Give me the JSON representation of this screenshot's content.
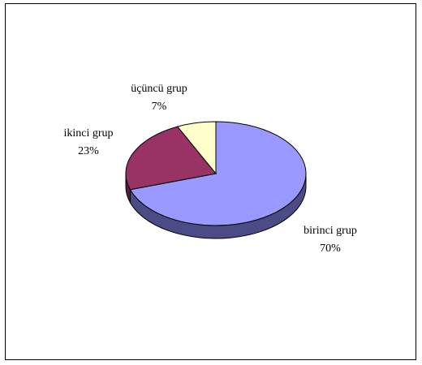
{
  "chart_data": {
    "type": "pie",
    "title": "",
    "style": "3d",
    "slices": [
      {
        "label": "birinci grup",
        "value": 70,
        "percent_label": "70%",
        "color": "#9999FF",
        "side_color": "#4B4B86"
      },
      {
        "label": "ikinci grup",
        "value": 23,
        "percent_label": "23%",
        "color": "#993366",
        "side_color": "#5A1E3C"
      },
      {
        "label": "üçüncü grup",
        "value": 7,
        "percent_label": "7%",
        "color": "#FFFFCC",
        "side_color": "#B0B08A"
      }
    ],
    "legend": "none",
    "data_labels": "category and percent, outside"
  }
}
